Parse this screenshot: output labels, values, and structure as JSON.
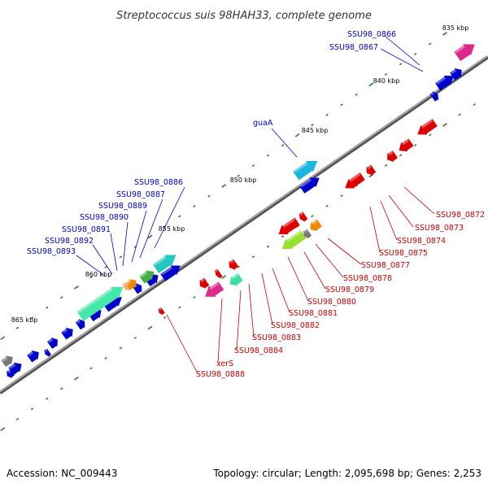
{
  "title": "Streptococcus suis 98HAH33, complete genome",
  "footer": {
    "accession": "Accession: NC_009443",
    "topology": "Topology: circular; Length: 2,095,698 bp; Genes: 2,253"
  },
  "colors": {
    "blue": "#0000cc",
    "red": "#dd0000",
    "backbone": "#888888",
    "tick": "#2a7a2a",
    "magenta": "#e0288c",
    "cyan": "#1bb6e0",
    "teal": "#20c8c0",
    "aqua": "#44e8a8",
    "green": "#40b040",
    "lime": "#98e030",
    "orange": "#ee8800",
    "gray": "#777777"
  },
  "kbp_labels": [
    "835 kbp",
    "840 kbp",
    "845 kbp",
    "850 kbp",
    "855 kbp",
    "860 kbp",
    "865 kbp"
  ],
  "blue_labels": [
    "SSU98_0866",
    "SSU98_0867",
    "guaA",
    "SSU98_0886",
    "SSU98_0887",
    "SSU98_0889",
    "SSU98_0890",
    "SSU98_0891",
    "SSU98_0892",
    "SSU98_0893"
  ],
  "red_labels": [
    "SSU98_0872",
    "SSU98_0873",
    "SSU98_0874",
    "SSU98_0875",
    "SSU98_0877",
    "SSU98_0878",
    "SSU98_0879",
    "SSU98_0880",
    "SSU98_0881",
    "SSU98_0882",
    "SSU98_0883",
    "SSU98_0884",
    "xerS",
    "SSU98_0888"
  ]
}
